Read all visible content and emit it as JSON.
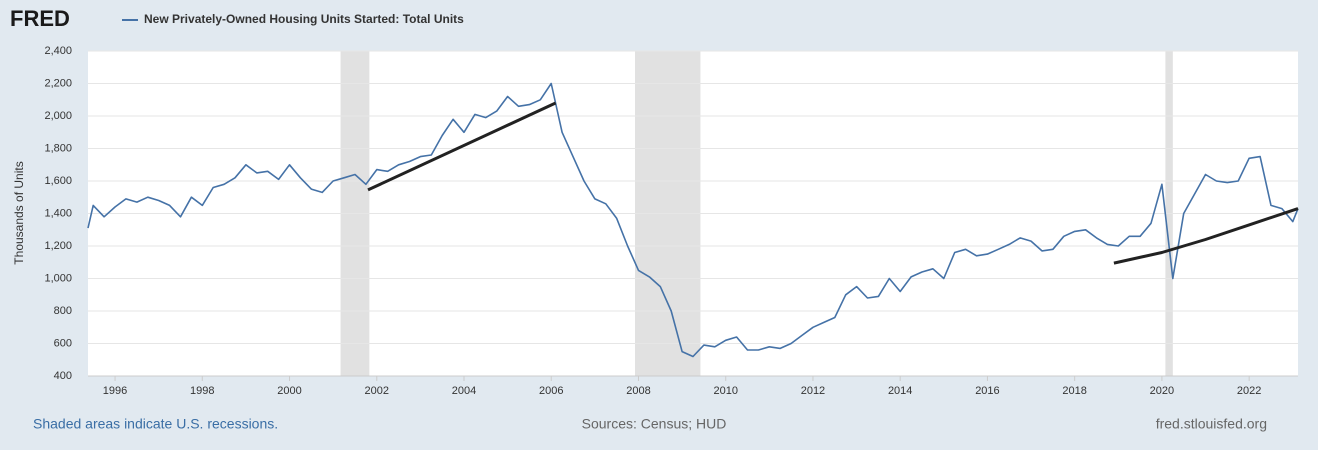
{
  "logo": "FRED",
  "chart_data": {
    "type": "line",
    "legend_label": "New Privately-Owned Housing Units Started: Total Units",
    "y_label": "Thousands of Units",
    "xlim": [
      1995.38,
      2023.12
    ],
    "xticks": [
      1996,
      1998,
      2000,
      2002,
      2004,
      2006,
      2008,
      2010,
      2012,
      2014,
      2016,
      2018,
      2020,
      2022
    ],
    "ylim": [
      400,
      2400
    ],
    "yticks": [
      400,
      600,
      800,
      {
        "value": 1000,
        "label": "1,000"
      },
      {
        "value": 1200,
        "label": "1,200"
      },
      {
        "value": 1400,
        "label": "1,400"
      },
      {
        "value": 1600,
        "label": "1,600"
      },
      {
        "value": 1800,
        "label": "1,800"
      },
      {
        "value": 2000,
        "label": "2,000"
      },
      {
        "value": 2200,
        "label": "2,200"
      },
      {
        "value": 2400,
        "label": "2,400"
      }
    ],
    "grid": true,
    "recession_color": "#e1e1e1",
    "recessions": [
      [
        2001.17,
        2001.83
      ],
      [
        2007.92,
        2009.42
      ],
      [
        2020.08,
        2020.25
      ]
    ],
    "series": [
      {
        "color": "#4572a7",
        "x": [
          1995.38,
          1995.5,
          1995.75,
          1996,
          1996.25,
          1996.5,
          1996.75,
          1997,
          1997.25,
          1997.5,
          1997.75,
          1998,
          1998.25,
          1998.5,
          1998.75,
          1999,
          1999.25,
          1999.5,
          1999.75,
          2000,
          2000.25,
          2000.5,
          2000.75,
          2001,
          2001.25,
          2001.5,
          2001.75,
          2002,
          2002.25,
          2002.5,
          2002.75,
          2003,
          2003.25,
          2003.5,
          2003.75,
          2004,
          2004.25,
          2004.5,
          2004.75,
          2005,
          2005.25,
          2005.5,
          2005.75,
          2006,
          2006.25,
          2006.5,
          2006.75,
          2007,
          2007.25,
          2007.5,
          2007.75,
          2008,
          2008.25,
          2008.5,
          2008.75,
          2009,
          2009.25,
          2009.5,
          2009.75,
          2010,
          2010.25,
          2010.5,
          2010.75,
          2011,
          2011.25,
          2011.5,
          2011.75,
          2012,
          2012.25,
          2012.5,
          2012.75,
          2013,
          2013.25,
          2013.5,
          2013.75,
          2014,
          2014.25,
          2014.5,
          2014.75,
          2015,
          2015.25,
          2015.5,
          2015.75,
          2016,
          2016.25,
          2016.5,
          2016.75,
          2017,
          2017.25,
          2017.5,
          2017.75,
          2018,
          2018.25,
          2018.5,
          2018.75,
          2019,
          2019.25,
          2019.5,
          2019.75,
          2020,
          2020.25,
          2020.5,
          2020.75,
          2021,
          2021.25,
          2021.5,
          2021.75,
          2022,
          2022.25,
          2022.5,
          2022.75,
          2023,
          2023.12
        ],
        "values": [
          1310,
          1450,
          1380,
          1440,
          1490,
          1470,
          1500,
          1480,
          1450,
          1380,
          1500,
          1450,
          1560,
          1580,
          1620,
          1700,
          1650,
          1660,
          1610,
          1700,
          1620,
          1550,
          1530,
          1600,
          1620,
          1640,
          1580,
          1670,
          1660,
          1700,
          1720,
          1750,
          1760,
          1880,
          1980,
          1900,
          2010,
          1990,
          2030,
          2120,
          2060,
          2070,
          2100,
          2200,
          1900,
          1750,
          1600,
          1490,
          1460,
          1370,
          1200,
          1050,
          1010,
          950,
          800,
          550,
          520,
          590,
          580,
          620,
          640,
          560,
          560,
          580,
          570,
          600,
          650,
          700,
          730,
          760,
          900,
          950,
          880,
          890,
          1000,
          920,
          1010,
          1040,
          1060,
          1000,
          1160,
          1180,
          1140,
          1150,
          1180,
          1210,
          1250,
          1230,
          1170,
          1180,
          1260,
          1290,
          1300,
          1250,
          1210,
          1200,
          1260,
          1260,
          1340,
          1580,
          1000,
          1400,
          1520,
          1640,
          1600,
          1590,
          1600,
          1740,
          1750,
          1450,
          1430,
          1350,
          1430
        ]
      }
    ],
    "trend_color": "#222222",
    "trend_lines": [
      {
        "x": [
          2001.8,
          2006.1
        ],
        "values": [
          1545,
          2080
        ]
      },
      {
        "x": [
          2018.9,
          2020,
          2021,
          2022,
          2023.12
        ],
        "values": [
          1095,
          1160,
          1240,
          1330,
          1430
        ]
      }
    ]
  },
  "footer": {
    "note": "Shaded areas indicate U.S. recessions.",
    "sources": "Sources: Census; HUD",
    "site": "fred.stlouisfed.org"
  }
}
